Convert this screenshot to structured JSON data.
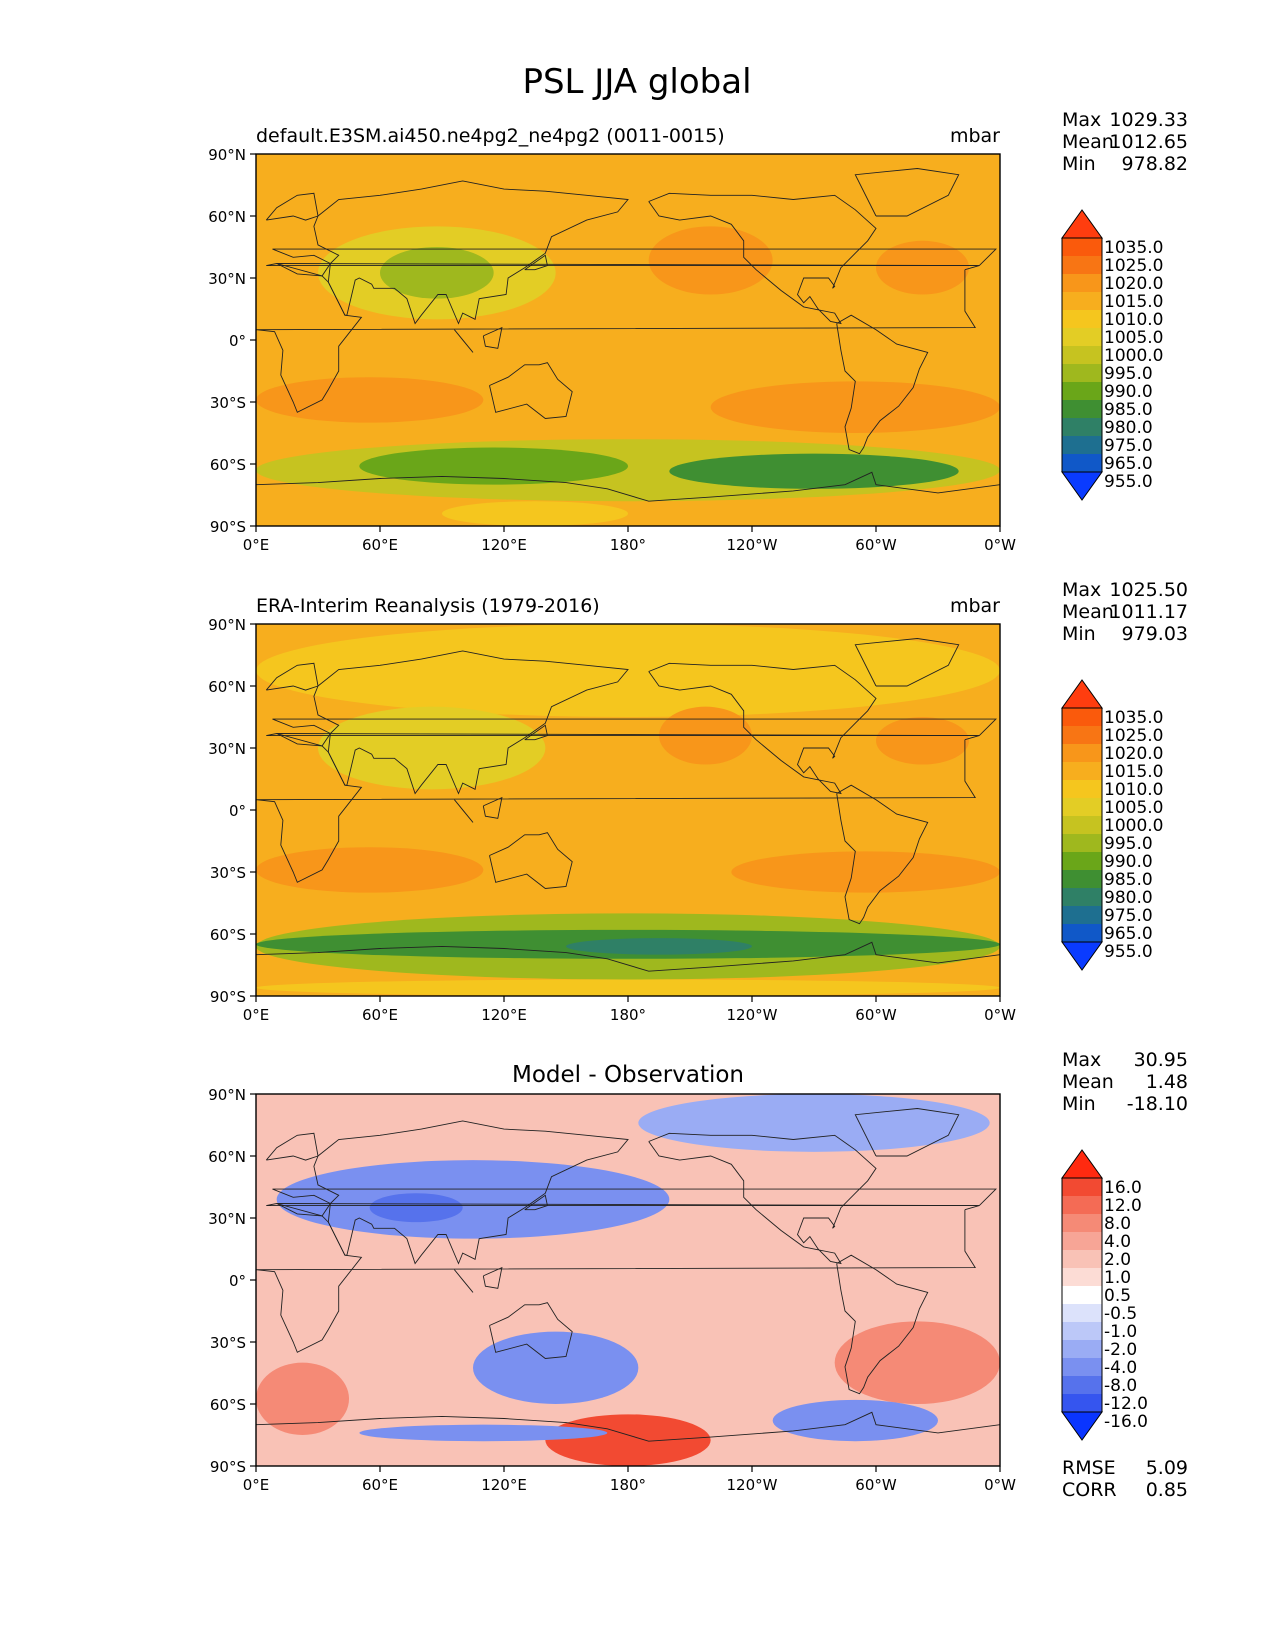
{
  "figure_title": "PSL JJA global",
  "colors": {
    "ocean_high": "#f58f0f",
    "land_line": "#222222"
  },
  "chart_data": [
    {
      "type": "heatmap",
      "id": "test",
      "title_left": "default.E3SM.ai450.ne4pg2_ne4pg2 (0011-0015)",
      "title_center": "",
      "units": "mbar",
      "stats": {
        "max_label": "Max",
        "max": "1029.33",
        "mean_label": "Mean",
        "mean": "1012.65",
        "min_label": "Min",
        "min": "978.82"
      },
      "lat_ticks": [
        "90°N",
        "60°N",
        "30°N",
        "0°",
        "30°S",
        "60°S",
        "90°S"
      ],
      "lon_ticks": [
        "0°E",
        "60°E",
        "120°E",
        "180°",
        "120°W",
        "60°W",
        "0°W"
      ],
      "colorbar_levels": [
        "1035.0",
        "1025.0",
        "1020.0",
        "1015.0",
        "1010.0",
        "1005.0",
        "1000.0",
        "995.0",
        "990.0",
        "985.0",
        "980.0",
        "975.0",
        "965.0",
        "955.0"
      ],
      "colorbar_colors": [
        "#ff3d0f",
        "#fa5a0c",
        "#f87514",
        "#f8961a",
        "#f7ae1e",
        "#f5c61e",
        "#e3cd25",
        "#c6c320",
        "#9fb81e",
        "#6aa619",
        "#3f8f32",
        "#2f8066",
        "#1e6f90",
        "#1058c8",
        "#0a3bff"
      ],
      "regions": [
        {
          "name": "background",
          "lat": [
            90,
            -90
          ],
          "lon": [
            0,
            360
          ],
          "level": "1015.0"
        },
        {
          "name": "ne-pacific-high",
          "lat": [
            55,
            22
          ],
          "lon": [
            190,
            250
          ],
          "level": "1020.0"
        },
        {
          "name": "nw-atlantic-high",
          "lat": [
            48,
            22
          ],
          "lon": [
            300,
            345
          ],
          "level": "1020.0"
        },
        {
          "name": "asia-low",
          "lat": [
            55,
            10
          ],
          "lon": [
            30,
            145
          ],
          "level": "1005.0"
        },
        {
          "name": "asia-low-core",
          "lat": [
            45,
            20
          ],
          "lon": [
            60,
            115
          ],
          "level": "995.0"
        },
        {
          "name": "s-indian-high",
          "lat": [
            -18,
            -40
          ],
          "lon": [
            0,
            110
          ],
          "level": "1020.0"
        },
        {
          "name": "s-pacific-high",
          "lat": [
            -20,
            -45
          ],
          "lon": [
            220,
            360
          ],
          "level": "1020.0"
        },
        {
          "name": "southern-ring",
          "lat": [
            -48,
            -78
          ],
          "lon": [
            0,
            360
          ],
          "level": "1000.0"
        },
        {
          "name": "southern-low-1",
          "lat": [
            -52,
            -70
          ],
          "lon": [
            50,
            180
          ],
          "level": "990.0"
        },
        {
          "name": "southern-low-2",
          "lat": [
            -55,
            -72
          ],
          "lon": [
            200,
            340
          ],
          "level": "985.0"
        },
        {
          "name": "antarctic-high",
          "lat": [
            -78,
            -90
          ],
          "lon": [
            90,
            180
          ],
          "level": "1010.0"
        }
      ]
    },
    {
      "type": "heatmap",
      "id": "reference",
      "title_left": "ERA-Interim Reanalysis (1979-2016)",
      "title_center": "",
      "units": "mbar",
      "stats": {
        "max_label": "Max",
        "max": "1025.50",
        "mean_label": "Mean",
        "mean": "1011.17",
        "min_label": "Min",
        "min": "979.03"
      },
      "lat_ticks": [
        "90°N",
        "60°N",
        "30°N",
        "0°",
        "30°S",
        "60°S",
        "90°S"
      ],
      "lon_ticks": [
        "0°E",
        "60°E",
        "120°E",
        "180°",
        "120°W",
        "60°W",
        "0°W"
      ],
      "colorbar_levels": [
        "1035.0",
        "1025.0",
        "1020.0",
        "1015.0",
        "1010.0",
        "1005.0",
        "1000.0",
        "995.0",
        "990.0",
        "985.0",
        "980.0",
        "975.0",
        "965.0",
        "955.0"
      ],
      "colorbar_colors": [
        "#ff3d0f",
        "#fa5a0c",
        "#f87514",
        "#f8961a",
        "#f7ae1e",
        "#f5c61e",
        "#e3cd25",
        "#c6c320",
        "#9fb81e",
        "#6aa619",
        "#3f8f32",
        "#2f8066",
        "#1e6f90",
        "#1058c8",
        "#0a3bff"
      ],
      "regions": [
        {
          "name": "background",
          "lat": [
            90,
            -90
          ],
          "lon": [
            0,
            360
          ],
          "level": "1015.0"
        },
        {
          "name": "northern-band",
          "lat": [
            90,
            45
          ],
          "lon": [
            0,
            360
          ],
          "level": "1010.0"
        },
        {
          "name": "ne-pacific-high",
          "lat": [
            50,
            22
          ],
          "lon": [
            195,
            240
          ],
          "level": "1020.0"
        },
        {
          "name": "n-atlantic-high",
          "lat": [
            45,
            22
          ],
          "lon": [
            300,
            345
          ],
          "level": "1020.0"
        },
        {
          "name": "asia-low",
          "lat": [
            50,
            10
          ],
          "lon": [
            30,
            140
          ],
          "level": "1005.0"
        },
        {
          "name": "s-indian-high",
          "lat": [
            -18,
            -40
          ],
          "lon": [
            0,
            110
          ],
          "level": "1020.0"
        },
        {
          "name": "s-pacific-high",
          "lat": [
            -20,
            -40
          ],
          "lon": [
            230,
            360
          ],
          "level": "1020.0"
        },
        {
          "name": "southern-ring",
          "lat": [
            -50,
            -82
          ],
          "lon": [
            0,
            360
          ],
          "level": "995.0"
        },
        {
          "name": "southern-core",
          "lat": [
            -58,
            -72
          ],
          "lon": [
            0,
            360
          ],
          "level": "985.0"
        },
        {
          "name": "southern-deep",
          "lat": [
            -62,
            -70
          ],
          "lon": [
            150,
            240
          ],
          "level": "980.0"
        },
        {
          "name": "antarctic",
          "lat": [
            -82,
            -90
          ],
          "lon": [
            0,
            360
          ],
          "level": "1010.0"
        }
      ]
    },
    {
      "type": "heatmap",
      "id": "difference",
      "title_left": "",
      "title_center": "Model - Observation",
      "units": "",
      "stats": {
        "max_label": "Max",
        "max": "30.95",
        "mean_label": "Mean",
        "mean": "1.48",
        "min_label": "Min",
        "min": "-18.10"
      },
      "extra_stats": [
        {
          "label": "RMSE",
          "value": "5.09"
        },
        {
          "label": "CORR",
          "value": "0.85"
        }
      ],
      "lat_ticks": [
        "90°N",
        "60°N",
        "30°N",
        "0°",
        "30°S",
        "60°S",
        "90°S"
      ],
      "lon_ticks": [
        "0°E",
        "60°E",
        "120°E",
        "180°",
        "120°W",
        "60°W",
        "0°W"
      ],
      "colorbar_levels": [
        "16.0",
        "12.0",
        "8.0",
        "4.0",
        "2.0",
        "1.0",
        "0.5",
        "-0.5",
        "-1.0",
        "-2.0",
        "-4.0",
        "-8.0",
        "-12.0",
        "-16.0"
      ],
      "colorbar_colors": [
        "#ff2a10",
        "#f24a32",
        "#f46b55",
        "#f58a76",
        "#f7a596",
        "#f9c2b6",
        "#fcdcd5",
        "#ffffff",
        "#dce2fb",
        "#bcc8f8",
        "#9aacf4",
        "#7a90f0",
        "#5672ec",
        "#3555ef",
        "#0a35ff"
      ],
      "regions": [
        {
          "name": "background",
          "lat": [
            90,
            -90
          ],
          "lon": [
            0,
            360
          ],
          "level": "2.0"
        },
        {
          "name": "warm-sw",
          "lat": [
            -40,
            -75
          ],
          "lon": [
            0,
            45
          ],
          "level": "8.0"
        },
        {
          "name": "warm-pacific-south",
          "lat": [
            -65,
            -90
          ],
          "lon": [
            140,
            220
          ],
          "level": "16.0"
        },
        {
          "name": "warm-se",
          "lat": [
            -20,
            -60
          ],
          "lon": [
            280,
            360
          ],
          "level": "8.0"
        },
        {
          "name": "asia-negative",
          "lat": [
            58,
            20
          ],
          "lon": [
            10,
            200
          ],
          "level": "-4.0"
        },
        {
          "name": "asia-core",
          "lat": [
            42,
            28
          ],
          "lon": [
            55,
            100
          ],
          "level": "-8.0"
        },
        {
          "name": "australia-negative",
          "lat": [
            -25,
            -60
          ],
          "lon": [
            105,
            185
          ],
          "level": "-4.0"
        },
        {
          "name": "arctic-negative",
          "lat": [
            90,
            62
          ],
          "lon": [
            185,
            355
          ],
          "level": "-2.0"
        },
        {
          "name": "southern-atlantic-neg",
          "lat": [
            -58,
            -78
          ],
          "lon": [
            250,
            330
          ],
          "level": "-4.0"
        },
        {
          "name": "southern-indian-neg",
          "lat": [
            -70,
            -78
          ],
          "lon": [
            50,
            170
          ],
          "level": "-4.0"
        }
      ]
    }
  ]
}
